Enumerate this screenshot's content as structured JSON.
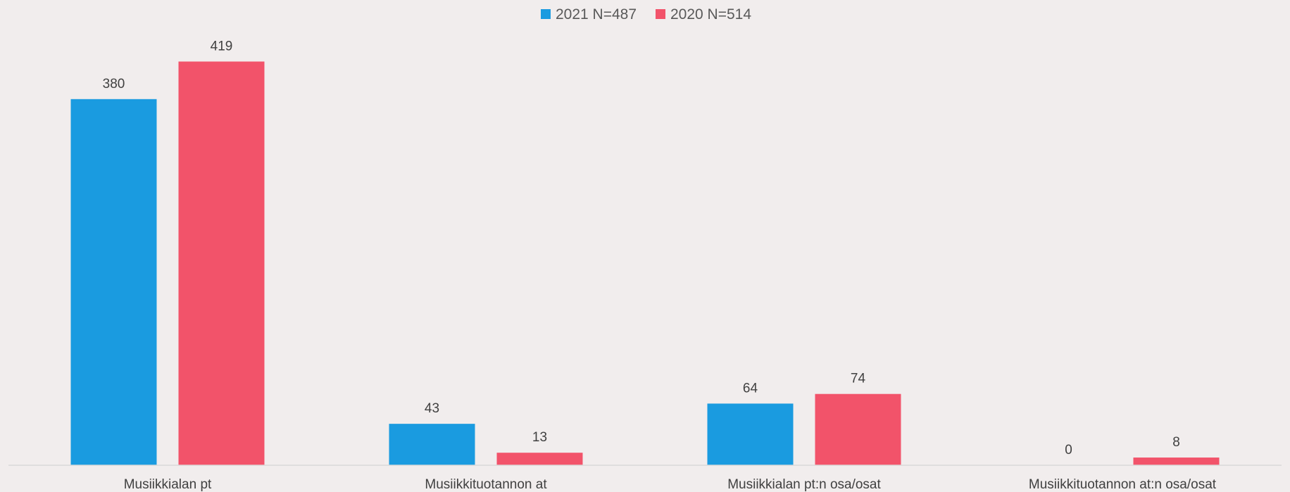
{
  "chart_data": {
    "type": "bar",
    "categories": [
      "Musiikkialan pt",
      "Musiikkituotannon at",
      "Musiikkialan pt:n osa/osat",
      "Musiikkituotannon at:n osa/osat"
    ],
    "series": [
      {
        "name": "2021 N=487",
        "color": "#1a9be0",
        "values": [
          380,
          43,
          64,
          0
        ]
      },
      {
        "name": "2020 N=514",
        "color": "#f2536a",
        "values": [
          419,
          13,
          74,
          8
        ]
      }
    ],
    "ylim": [
      0,
      450
    ],
    "grid": false,
    "legend_position": "top-center",
    "data_labels": true
  }
}
